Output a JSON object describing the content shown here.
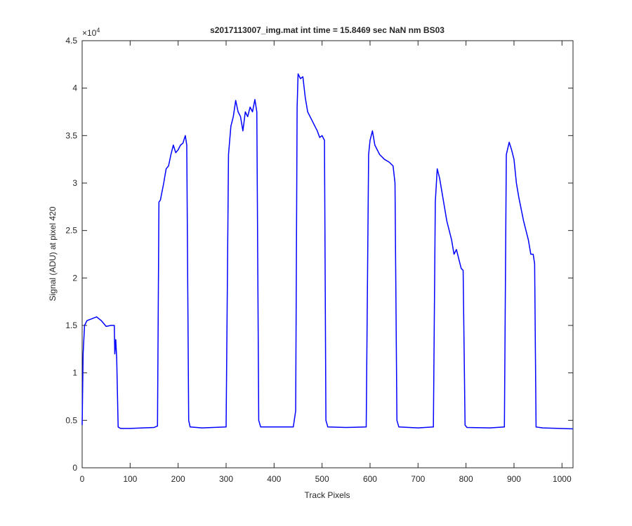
{
  "chart_data": {
    "type": "line",
    "title": "s2017113007_img.mat int time = 15.8469 sec  NaN nm BS03",
    "x_label": "Track Pixels",
    "y_label": "Signal (ADU) at pixel 420",
    "y_multiplier": {
      "base": "×10",
      "exponent": "4"
    },
    "color": "#0000ff",
    "x": [
      0,
      2,
      5,
      10,
      20,
      30,
      40,
      50,
      60,
      67,
      68,
      70,
      72,
      75,
      80,
      100,
      150,
      157,
      160,
      163,
      170,
      175,
      180,
      185,
      190,
      195,
      200,
      205,
      210,
      215,
      218,
      222,
      225,
      250,
      300,
      305,
      310,
      315,
      320,
      325,
      330,
      335,
      340,
      345,
      350,
      355,
      360,
      364,
      368,
      372,
      400,
      440,
      445,
      448,
      450,
      455,
      460,
      465,
      470,
      480,
      490,
      495,
      500,
      505,
      508,
      512,
      550,
      592,
      597,
      600,
      605,
      610,
      620,
      630,
      640,
      648,
      652,
      656,
      660,
      700,
      732,
      736,
      740,
      745,
      750,
      760,
      770,
      775,
      780,
      785,
      790,
      794,
      798,
      802,
      850,
      880,
      884,
      890,
      895,
      900,
      905,
      910,
      920,
      930,
      935,
      940,
      943,
      946,
      960,
      1023
    ],
    "values": [
      4500,
      12000,
      15000,
      15500,
      15700,
      15900,
      15500,
      14900,
      15000,
      15000,
      12000,
      13500,
      11500,
      4300,
      4150,
      4150,
      4250,
      4400,
      28000,
      28200,
      30000,
      31500,
      31800,
      33000,
      34000,
      33200,
      33500,
      34000,
      34200,
      35000,
      34000,
      5000,
      4300,
      4200,
      4300,
      33000,
      36000,
      37000,
      38700,
      37500,
      37000,
      35500,
      37500,
      37000,
      38000,
      37500,
      38800,
      37500,
      5000,
      4300,
      4300,
      4300,
      6000,
      38000,
      41500,
      41000,
      41200,
      39000,
      37500,
      36500,
      35500,
      34800,
      35000,
      34500,
      5000,
      4300,
      4250,
      4300,
      33000,
      34500,
      35500,
      34000,
      33000,
      32500,
      32200,
      31800,
      30000,
      5000,
      4300,
      4200,
      4300,
      28000,
      31500,
      30500,
      29000,
      26000,
      24000,
      22500,
      23000,
      22000,
      21000,
      20800,
      4500,
      4250,
      4200,
      4300,
      33000,
      34300,
      33500,
      32500,
      30000,
      28500,
      26000,
      24000,
      22500,
      22500,
      21500,
      4300,
      4200,
      4100
    ],
    "xlim": [
      0,
      1023
    ],
    "xticks": [
      0,
      100,
      200,
      300,
      400,
      500,
      600,
      700,
      800,
      900,
      1000
    ],
    "ylim": [
      0,
      45000
    ],
    "yticks": [
      {
        "value": 0,
        "label": "0"
      },
      {
        "value": 5000,
        "label": "0.5"
      },
      {
        "value": 10000,
        "label": "1"
      },
      {
        "value": 15000,
        "label": "1.5"
      },
      {
        "value": 20000,
        "label": "2"
      },
      {
        "value": 25000,
        "label": "2.5"
      },
      {
        "value": 30000,
        "label": "3"
      },
      {
        "value": 35000,
        "label": "3.5"
      },
      {
        "value": 40000,
        "label": "4"
      },
      {
        "value": 45000,
        "label": "4.5"
      }
    ],
    "grid": false
  }
}
